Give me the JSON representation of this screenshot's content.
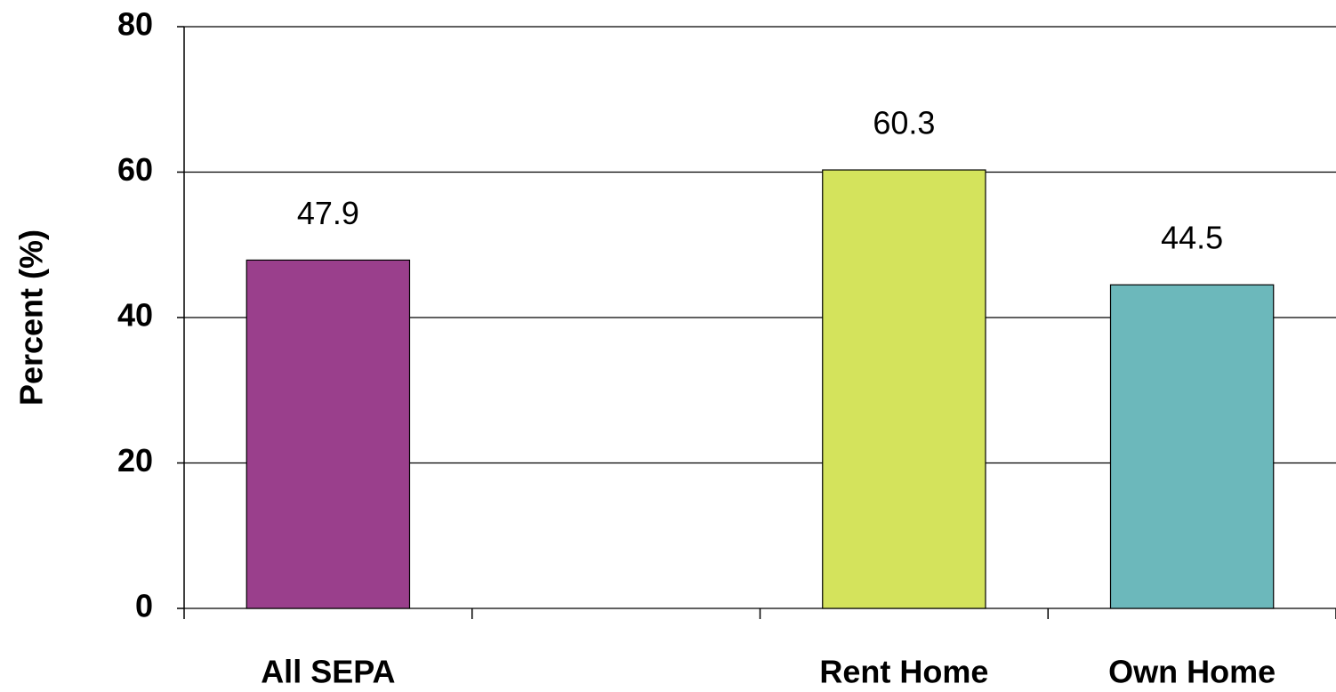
{
  "chart_data": {
    "type": "bar",
    "y_label": "Percent (%)",
    "categories": [
      "All SEPA",
      null,
      "Rent Home",
      "Own Home"
    ],
    "values": [
      47.9,
      null,
      60.3,
      44.5
    ],
    "colors": [
      "#9a3f8c",
      null,
      "#d4e35c",
      "#6cb8bb"
    ],
    "ylim": [
      0,
      80
    ],
    "yticks": [
      0,
      20,
      40,
      60,
      80
    ],
    "grid": true
  }
}
